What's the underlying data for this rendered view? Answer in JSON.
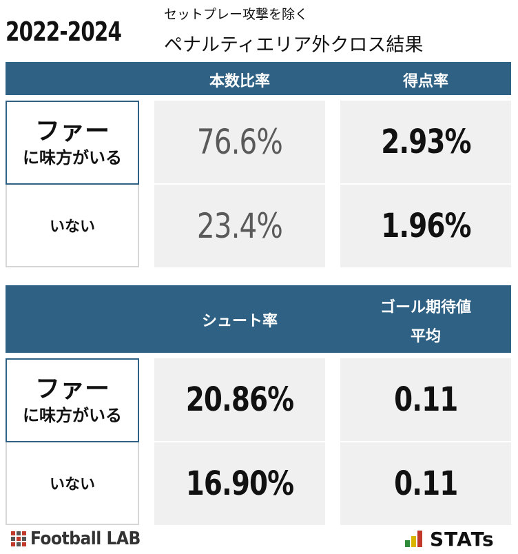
{
  "header": {
    "season": "2022-2024",
    "subtitle": "セットプレー攻撃を除く",
    "title": "ペナルティエリア外クロス結果"
  },
  "table1": {
    "col1": "本数比率",
    "col2": "得点率",
    "row1_label_line1": "ファー",
    "row1_label_line2": "に味方がいる",
    "row2_label": "いない",
    "rows": [
      {
        "ratio": "76.6%",
        "goal_rate": "2.93%"
      },
      {
        "ratio": "23.4%",
        "goal_rate": "1.96%"
      }
    ]
  },
  "table2": {
    "col1": "シュート率",
    "col2_line1": "ゴール期待値",
    "col2_line2": "平均",
    "row1_label_line1": "ファー",
    "row1_label_line2": "に味方がいる",
    "row2_label": "いない",
    "rows": [
      {
        "shot_rate": "20.86%",
        "xg_avg": "0.11"
      },
      {
        "shot_rate": "16.90%",
        "xg_avg": "0.11"
      }
    ]
  },
  "footer": {
    "left_brand": "Football LAB",
    "right_brand": "STATs"
  },
  "colors": {
    "header_band": "#2e6183",
    "cell_bg": "#f0f0f0",
    "grey_value": "#5a5a5a"
  }
}
